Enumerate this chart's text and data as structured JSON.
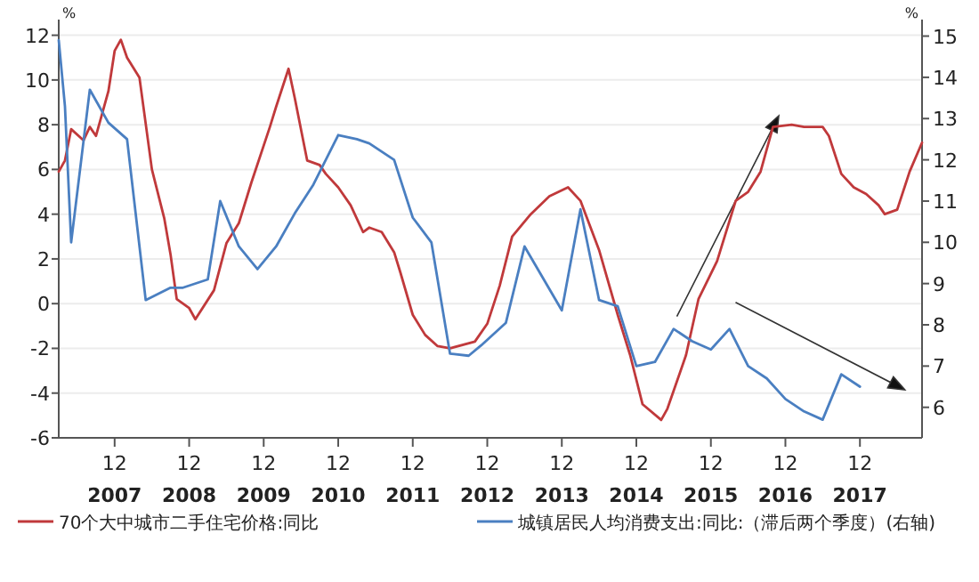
{
  "chart_data": {
    "type": "line",
    "ylabel": "%",
    "y2label": "%",
    "xlim": [
      "2007-03",
      "2018-10"
    ],
    "ylim": [
      -6,
      12.7
    ],
    "y2lim": [
      5.26,
      15.4
    ],
    "xticks": [
      {
        "value": "2007-12",
        "label": "12\n2007"
      },
      {
        "value": "2008-12",
        "label": "12\n2008"
      },
      {
        "value": "2009-12",
        "label": "12\n2009"
      },
      {
        "value": "2010-12",
        "label": "12\n2010"
      },
      {
        "value": "2011-12",
        "label": "12\n2011"
      },
      {
        "value": "2012-12",
        "label": "12\n2012"
      },
      {
        "value": "2013-12",
        "label": "12\n2013"
      },
      {
        "value": "2014-12",
        "label": "12\n2014"
      },
      {
        "value": "2015-12",
        "label": "12\n2015"
      },
      {
        "value": "2016-12",
        "label": "12\n2016"
      },
      {
        "value": "2017-12",
        "label": "12\n2017"
      }
    ],
    "yticks": [
      -6,
      -4,
      -2,
      0,
      2,
      4,
      6,
      8,
      10,
      12
    ],
    "y2ticks": [
      6,
      7,
      8,
      9,
      10,
      11,
      12,
      13,
      14,
      15
    ],
    "grid": "y",
    "legend": "bottom",
    "marker": "none",
    "line_style": "solid",
    "series": [
      {
        "name": "70个大中城市二手住宅价格:同比",
        "color": "#c0393b",
        "x": [
          "2007-03",
          "2007-04",
          "2007-05",
          "2007-07",
          "2007-08",
          "2007-09",
          "2007-11",
          "2007-12",
          "2008-01",
          "2008-02",
          "2008-04",
          "2008-06",
          "2008-08",
          "2008-09",
          "2008-10",
          "2008-12",
          "2009-01",
          "2009-04",
          "2009-06",
          "2009-08",
          "2009-10",
          "2010-01",
          "2010-02",
          "2010-04",
          "2010-05",
          "2010-06",
          "2010-07",
          "2010-09",
          "2010-10",
          "2010-12",
          "2011-02",
          "2011-04",
          "2011-05",
          "2011-07",
          "2011-09",
          "2011-10",
          "2011-12",
          "2012-02",
          "2012-04",
          "2012-06",
          "2012-10",
          "2012-12",
          "2013-02",
          "2013-04",
          "2013-07",
          "2013-10",
          "2014-01",
          "2014-03",
          "2014-06",
          "2014-09",
          "2014-11",
          "2015-01",
          "2015-04",
          "2015-05",
          "2015-08",
          "2015-10",
          "2016-01",
          "2016-04",
          "2016-06",
          "2016-08",
          "2016-10",
          "2017-01",
          "2017-03",
          "2017-06",
          "2017-07",
          "2017-09",
          "2017-11",
          "2018-01",
          "2018-03",
          "2018-04",
          "2018-06",
          "2018-08",
          "2018-10"
        ],
        "values": [
          5.9,
          6.4,
          7.8,
          7.3,
          7.9,
          7.5,
          9.5,
          11.3,
          11.8,
          11.0,
          10.1,
          6.0,
          3.8,
          2.2,
          0.2,
          -0.2,
          -0.7,
          0.6,
          2.7,
          3.6,
          5.4,
          7.9,
          8.8,
          10.5,
          9.2,
          7.8,
          6.4,
          6.2,
          5.8,
          5.2,
          4.4,
          3.2,
          3.4,
          3.2,
          2.3,
          1.4,
          -0.5,
          -1.4,
          -1.9,
          -2.0,
          -1.7,
          -0.9,
          0.8,
          3.0,
          4.0,
          4.8,
          5.2,
          4.6,
          2.4,
          -0.5,
          -2.3,
          -4.5,
          -5.2,
          -4.7,
          -2.3,
          0.2,
          1.9,
          4.6,
          5.0,
          5.9,
          7.9,
          8.0,
          7.9,
          7.9,
          7.5,
          5.8,
          5.2,
          4.9,
          4.4,
          4.0,
          4.2,
          5.9,
          7.2
        ]
      },
      {
        "name": "城镇居民人均消费支出:同比:（滞后两个季度）(右轴)",
        "color": "#4a7fc1",
        "axis": "y2",
        "x": [
          "2007-03",
          "2007-04",
          "2007-05",
          "2007-08",
          "2007-11",
          "2008-02",
          "2008-05",
          "2008-09",
          "2008-11",
          "2009-03",
          "2009-05",
          "2009-08",
          "2009-11",
          "2010-02",
          "2010-05",
          "2010-08",
          "2010-12",
          "2011-03",
          "2011-05",
          "2011-09",
          "2011-12",
          "2012-03",
          "2012-06",
          "2012-09",
          "2012-11",
          "2013-03",
          "2013-06",
          "2013-12",
          "2014-03",
          "2014-06",
          "2014-09",
          "2014-12",
          "2015-03",
          "2015-06",
          "2015-09",
          "2015-12",
          "2016-03",
          "2016-06",
          "2016-09",
          "2016-12",
          "2017-03",
          "2017-06",
          "2017-09",
          "2017-12"
        ],
        "values": [
          14.9,
          13.3,
          10.0,
          13.7,
          12.9,
          12.5,
          8.6,
          8.9,
          8.9,
          9.1,
          11.0,
          9.9,
          9.35,
          9.9,
          10.7,
          11.4,
          12.6,
          12.5,
          12.4,
          12.0,
          10.6,
          10.0,
          7.3,
          7.25,
          7.5,
          8.05,
          9.9,
          8.35,
          10.8,
          8.6,
          8.45,
          7.0,
          7.1,
          7.9,
          7.6,
          7.4,
          7.9,
          7.0,
          6.7,
          6.2,
          5.9,
          5.7,
          6.8,
          6.5
        ]
      }
    ]
  }
}
